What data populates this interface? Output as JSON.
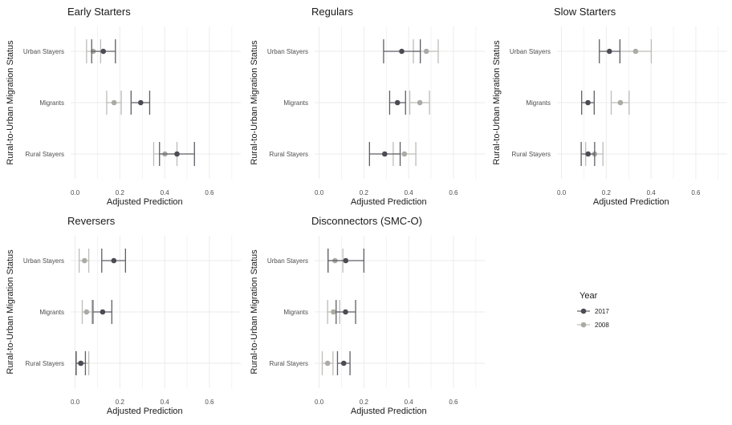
{
  "chart_data": {
    "type": "errorbar-dot",
    "shared": {
      "xlabel": "Adjusted Prediction",
      "ylabel": "Rural-to-Urban Migration Status",
      "categories": [
        "Urban Stayers",
        "Migrants",
        "Rural Stayers"
      ],
      "xticks": [
        0.0,
        0.2,
        0.4,
        0.6
      ],
      "xtick_labels": [
        "0.0",
        "0.2",
        "0.4",
        "0.6"
      ],
      "xlim": [
        -0.02,
        0.74
      ],
      "grid": true
    },
    "legend": {
      "title": "Year",
      "placement": "right",
      "entries": [
        {
          "label": "2017",
          "color": "#4b4b53"
        },
        {
          "label": "2008",
          "color": "#abaaa5"
        }
      ]
    },
    "panels": [
      {
        "title": "Early Starters",
        "series": [
          {
            "name": "2017",
            "values": [
              0.126,
              0.293,
              0.455
            ],
            "lower": [
              0.074,
              0.25,
              0.377
            ],
            "upper": [
              0.18,
              0.333,
              0.533
            ]
          },
          {
            "name": "2008",
            "values": [
              0.081,
              0.174,
              0.401
            ],
            "lower": [
              0.051,
              0.141,
              0.351
            ],
            "upper": [
              0.114,
              0.206,
              0.455
            ]
          }
        ]
      },
      {
        "title": "Regulars",
        "series": [
          {
            "name": "2017",
            "values": [
              0.369,
              0.35,
              0.293
            ],
            "lower": [
              0.288,
              0.315,
              0.225
            ],
            "upper": [
              0.452,
              0.386,
              0.362
            ]
          },
          {
            "name": "2008",
            "values": [
              0.479,
              0.45,
              0.381
            ],
            "lower": [
              0.421,
              0.405,
              0.331
            ],
            "upper": [
              0.532,
              0.493,
              0.432
            ]
          }
        ]
      },
      {
        "title": "Slow Starters",
        "series": [
          {
            "name": "2017",
            "values": [
              0.214,
              0.118,
              0.119
            ],
            "lower": [
              0.169,
              0.09,
              0.088
            ],
            "upper": [
              0.261,
              0.146,
              0.148
            ]
          },
          {
            "name": "2008",
            "values": [
              0.331,
              0.263,
              0.148
            ],
            "lower": [
              0.261,
              0.222,
              0.108
            ],
            "upper": [
              0.401,
              0.302,
              0.185
            ]
          }
        ]
      },
      {
        "title": "Reversers",
        "series": [
          {
            "name": "2017",
            "values": [
              0.173,
              0.123,
              0.025
            ],
            "lower": [
              0.119,
              0.08,
              0.004
            ],
            "upper": [
              0.225,
              0.164,
              0.046
            ]
          },
          {
            "name": "2008",
            "values": [
              0.042,
              0.051,
              0.027
            ],
            "lower": [
              0.018,
              0.032,
              0.006
            ],
            "upper": [
              0.061,
              0.075,
              0.061
            ]
          }
        ]
      },
      {
        "title": "Disconnectors (SMC-O)",
        "series": [
          {
            "name": "2017",
            "values": [
              0.119,
              0.118,
              0.11
            ],
            "lower": [
              0.04,
              0.076,
              0.082
            ],
            "upper": [
              0.2,
              0.163,
              0.138
            ]
          },
          {
            "name": "2008",
            "values": [
              0.071,
              0.064,
              0.038
            ],
            "lower": [
              0.04,
              0.038,
              0.014
            ],
            "upper": [
              0.106,
              0.092,
              0.062
            ]
          }
        ]
      }
    ]
  }
}
